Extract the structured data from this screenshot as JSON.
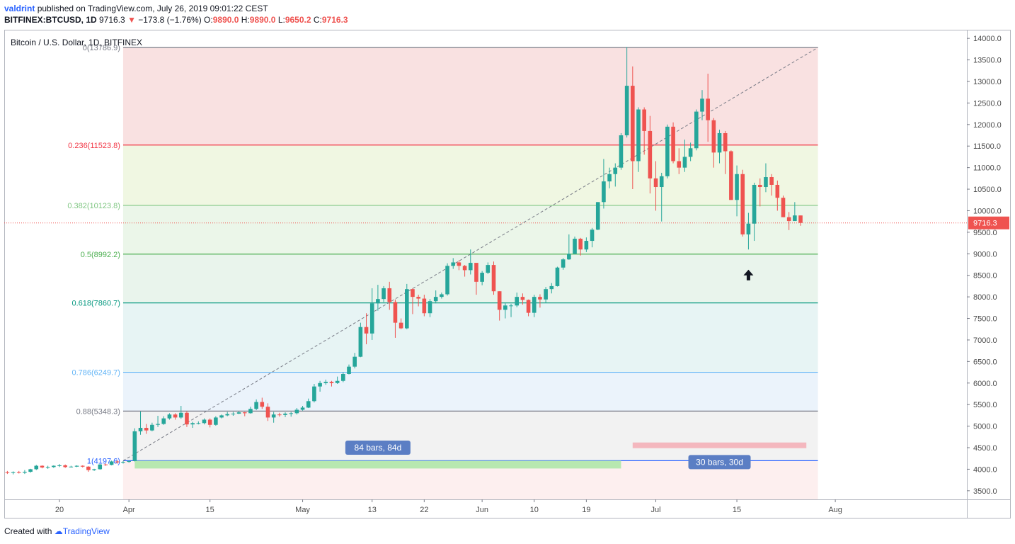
{
  "header": {
    "author": "valdrint",
    "published_text": "published on TradingView.com, July 26, 2019 09:01:22 CEST",
    "symbol": "BITFINEX:BTCUSD, 1D",
    "last": "9716.3",
    "arrow": "▼",
    "change": "−173.8 (−1.76%)",
    "o_label": "O:",
    "o_value": "9890.0",
    "h_label": "H:",
    "h_value": "9890.0",
    "l_label": "L:",
    "l_value": "9650.2",
    "c_label": "C:",
    "c_value": "9716.3"
  },
  "footer": {
    "created_with": "Created with",
    "brand": "TradingView"
  },
  "chart_data": {
    "type": "candlestick",
    "title": "Bitcoin / U.S. Dollar, 1D, BITFINEX",
    "ylim": [
      3300,
      14200
    ],
    "y_ticks": [
      3500,
      4000,
      4500,
      5000,
      5500,
      6000,
      6500,
      7000,
      7500,
      8000,
      8500,
      9000,
      9500,
      10000,
      10500,
      11000,
      11500,
      12000,
      12500,
      13000,
      13500,
      14000
    ],
    "x_ticks": [
      {
        "label": "20",
        "date": "2019-03-20"
      },
      {
        "label": "Apr",
        "date": "2019-04-01"
      },
      {
        "label": "15",
        "date": "2019-04-15"
      },
      {
        "label": "May",
        "date": "2019-05-01"
      },
      {
        "label": "13",
        "date": "2019-05-13"
      },
      {
        "label": "22",
        "date": "2019-05-22"
      },
      {
        "label": "Jun",
        "date": "2019-06-01"
      },
      {
        "label": "10",
        "date": "2019-06-10"
      },
      {
        "label": "19",
        "date": "2019-06-19"
      },
      {
        "label": "Jul",
        "date": "2019-07-01"
      },
      {
        "label": "15",
        "date": "2019-07-15"
      },
      {
        "label": "Aug",
        "date": "2019-08-01"
      }
    ],
    "current_price": "9716.3",
    "fib_levels": [
      {
        "ratio": "0",
        "price": "13786.9",
        "value": 13786.9,
        "color": "#787b86"
      },
      {
        "ratio": "0.236",
        "price": "11523.8",
        "value": 11523.8,
        "color": "#f23645"
      },
      {
        "ratio": "0.382",
        "price": "10123.8",
        "value": 10123.8,
        "color": "#81c784"
      },
      {
        "ratio": "0.5",
        "price": "8992.2",
        "value": 8992.2,
        "color": "#4caf50"
      },
      {
        "ratio": "0.618",
        "price": "7860.7",
        "value": 7860.7,
        "color": "#089981"
      },
      {
        "ratio": "0.786",
        "price": "6249.7",
        "value": 6249.7,
        "color": "#64b5f6"
      },
      {
        "ratio": "0.88",
        "price": "5348.3",
        "value": 5348.3,
        "color": "#787b86"
      },
      {
        "ratio": "1",
        "price": "4197.6",
        "value": 4197.6,
        "color": "#2962ff"
      }
    ],
    "range_labels": [
      "84 bars, 84d",
      "30 bars, 30d"
    ],
    "candles": [
      {
        "date": "2019-03-11",
        "o": 3930,
        "h": 3960,
        "l": 3890,
        "c": 3920
      },
      {
        "date": "2019-03-12",
        "o": 3920,
        "h": 3950,
        "l": 3880,
        "c": 3930
      },
      {
        "date": "2019-03-13",
        "o": 3930,
        "h": 3960,
        "l": 3900,
        "c": 3920
      },
      {
        "date": "2019-03-14",
        "o": 3920,
        "h": 3980,
        "l": 3890,
        "c": 3940
      },
      {
        "date": "2019-03-15",
        "o": 3940,
        "h": 4010,
        "l": 3920,
        "c": 4000
      },
      {
        "date": "2019-03-16",
        "o": 4000,
        "h": 4100,
        "l": 3980,
        "c": 4080
      },
      {
        "date": "2019-03-17",
        "o": 4080,
        "h": 4090,
        "l": 4020,
        "c": 4040
      },
      {
        "date": "2019-03-18",
        "o": 4040,
        "h": 4080,
        "l": 4010,
        "c": 4050
      },
      {
        "date": "2019-03-19",
        "o": 4050,
        "h": 4090,
        "l": 4030,
        "c": 4080
      },
      {
        "date": "2019-03-20",
        "o": 4080,
        "h": 4120,
        "l": 4050,
        "c": 4090
      },
      {
        "date": "2019-03-21",
        "o": 4090,
        "h": 4110,
        "l": 4030,
        "c": 4050
      },
      {
        "date": "2019-03-22",
        "o": 4050,
        "h": 4080,
        "l": 4040,
        "c": 4060
      },
      {
        "date": "2019-03-23",
        "o": 4060,
        "h": 4090,
        "l": 4050,
        "c": 4080
      },
      {
        "date": "2019-03-24",
        "o": 4080,
        "h": 4090,
        "l": 4040,
        "c": 4060
      },
      {
        "date": "2019-03-25",
        "o": 4060,
        "h": 4070,
        "l": 3940,
        "c": 3980
      },
      {
        "date": "2019-03-26",
        "o": 3980,
        "h": 4010,
        "l": 3960,
        "c": 4000
      },
      {
        "date": "2019-03-27",
        "o": 4000,
        "h": 4120,
        "l": 3990,
        "c": 4110
      },
      {
        "date": "2019-03-28",
        "o": 4110,
        "h": 4130,
        "l": 4080,
        "c": 4100
      },
      {
        "date": "2019-03-29",
        "o": 4100,
        "h": 4200,
        "l": 4090,
        "c": 4180
      },
      {
        "date": "2019-03-30",
        "o": 4180,
        "h": 4210,
        "l": 4130,
        "c": 4160
      },
      {
        "date": "2019-03-31",
        "o": 4160,
        "h": 4190,
        "l": 4130,
        "c": 4170
      },
      {
        "date": "2019-04-01",
        "o": 4170,
        "h": 4200,
        "l": 4150,
        "c": 4190
      },
      {
        "date": "2019-04-02",
        "o": 4190,
        "h": 4950,
        "l": 4180,
        "c": 4880
      },
      {
        "date": "2019-04-03",
        "o": 4880,
        "h": 5340,
        "l": 4800,
        "c": 4960
      },
      {
        "date": "2019-04-04",
        "o": 4960,
        "h": 5050,
        "l": 4820,
        "c": 4900
      },
      {
        "date": "2019-04-05",
        "o": 4900,
        "h": 5080,
        "l": 4880,
        "c": 5030
      },
      {
        "date": "2019-04-06",
        "o": 5030,
        "h": 5240,
        "l": 4980,
        "c": 5050
      },
      {
        "date": "2019-04-07",
        "o": 5050,
        "h": 5230,
        "l": 5030,
        "c": 5180
      },
      {
        "date": "2019-04-08",
        "o": 5180,
        "h": 5300,
        "l": 5150,
        "c": 5270
      },
      {
        "date": "2019-04-09",
        "o": 5270,
        "h": 5300,
        "l": 5150,
        "c": 5200
      },
      {
        "date": "2019-04-10",
        "o": 5200,
        "h": 5470,
        "l": 5170,
        "c": 5310
      },
      {
        "date": "2019-04-11",
        "o": 5310,
        "h": 5350,
        "l": 4980,
        "c": 5040
      },
      {
        "date": "2019-04-12",
        "o": 5040,
        "h": 5100,
        "l": 4960,
        "c": 5070
      },
      {
        "date": "2019-04-13",
        "o": 5070,
        "h": 5110,
        "l": 5040,
        "c": 5070
      },
      {
        "date": "2019-04-14",
        "o": 5070,
        "h": 5180,
        "l": 5040,
        "c": 5150
      },
      {
        "date": "2019-04-15",
        "o": 5150,
        "h": 5180,
        "l": 4970,
        "c": 5030
      },
      {
        "date": "2019-04-16",
        "o": 5030,
        "h": 5230,
        "l": 5010,
        "c": 5200
      },
      {
        "date": "2019-04-17",
        "o": 5200,
        "h": 5270,
        "l": 5180,
        "c": 5250
      },
      {
        "date": "2019-04-18",
        "o": 5250,
        "h": 5330,
        "l": 5230,
        "c": 5280
      },
      {
        "date": "2019-04-19",
        "o": 5280,
        "h": 5330,
        "l": 5240,
        "c": 5290
      },
      {
        "date": "2019-04-20",
        "o": 5290,
        "h": 5350,
        "l": 5280,
        "c": 5320
      },
      {
        "date": "2019-04-21",
        "o": 5320,
        "h": 5330,
        "l": 5230,
        "c": 5300
      },
      {
        "date": "2019-04-22",
        "o": 5300,
        "h": 5450,
        "l": 5290,
        "c": 5400
      },
      {
        "date": "2019-04-23",
        "o": 5400,
        "h": 5620,
        "l": 5370,
        "c": 5560
      },
      {
        "date": "2019-04-24",
        "o": 5560,
        "h": 5660,
        "l": 5400,
        "c": 5450
      },
      {
        "date": "2019-04-25",
        "o": 5450,
        "h": 5530,
        "l": 5120,
        "c": 5200
      },
      {
        "date": "2019-04-26",
        "o": 5200,
        "h": 5330,
        "l": 5080,
        "c": 5270
      },
      {
        "date": "2019-04-27",
        "o": 5270,
        "h": 5310,
        "l": 5220,
        "c": 5260
      },
      {
        "date": "2019-04-28",
        "o": 5260,
        "h": 5320,
        "l": 5210,
        "c": 5290
      },
      {
        "date": "2019-04-29",
        "o": 5290,
        "h": 5330,
        "l": 5220,
        "c": 5300
      },
      {
        "date": "2019-04-30",
        "o": 5300,
        "h": 5420,
        "l": 5270,
        "c": 5380
      },
      {
        "date": "2019-05-01",
        "o": 5380,
        "h": 5470,
        "l": 5360,
        "c": 5430
      },
      {
        "date": "2019-05-02",
        "o": 5430,
        "h": 5640,
        "l": 5420,
        "c": 5580
      },
      {
        "date": "2019-05-03",
        "o": 5580,
        "h": 5980,
        "l": 5550,
        "c": 5920
      },
      {
        "date": "2019-05-04",
        "o": 5920,
        "h": 6050,
        "l": 5800,
        "c": 6000
      },
      {
        "date": "2019-05-05",
        "o": 6000,
        "h": 6080,
        "l": 5960,
        "c": 6030
      },
      {
        "date": "2019-05-06",
        "o": 6030,
        "h": 6050,
        "l": 5920,
        "c": 6000
      },
      {
        "date": "2019-05-07",
        "o": 6000,
        "h": 6150,
        "l": 5980,
        "c": 6050
      },
      {
        "date": "2019-05-08",
        "o": 6050,
        "h": 6250,
        "l": 6020,
        "c": 6210
      },
      {
        "date": "2019-05-09",
        "o": 6210,
        "h": 6430,
        "l": 6200,
        "c": 6380
      },
      {
        "date": "2019-05-10",
        "o": 6380,
        "h": 6700,
        "l": 6340,
        "c": 6610
      },
      {
        "date": "2019-05-11",
        "o": 6610,
        "h": 7400,
        "l": 6600,
        "c": 7300
      },
      {
        "date": "2019-05-12",
        "o": 7300,
        "h": 7620,
        "l": 6900,
        "c": 7150
      },
      {
        "date": "2019-05-13",
        "o": 7150,
        "h": 8200,
        "l": 7000,
        "c": 7850
      },
      {
        "date": "2019-05-14",
        "o": 7850,
        "h": 8280,
        "l": 7680,
        "c": 7950
      },
      {
        "date": "2019-05-15",
        "o": 7950,
        "h": 8250,
        "l": 7880,
        "c": 8200
      },
      {
        "date": "2019-05-16",
        "o": 8200,
        "h": 8350,
        "l": 7700,
        "c": 7880
      },
      {
        "date": "2019-05-17",
        "o": 7880,
        "h": 7940,
        "l": 7050,
        "c": 7400
      },
      {
        "date": "2019-05-18",
        "o": 7400,
        "h": 7500,
        "l": 7250,
        "c": 7270
      },
      {
        "date": "2019-05-19",
        "o": 7270,
        "h": 8300,
        "l": 7250,
        "c": 8180
      },
      {
        "date": "2019-05-20",
        "o": 8180,
        "h": 8200,
        "l": 7600,
        "c": 8000
      },
      {
        "date": "2019-05-21",
        "o": 8000,
        "h": 8050,
        "l": 7780,
        "c": 7960
      },
      {
        "date": "2019-05-22",
        "o": 7960,
        "h": 8050,
        "l": 7550,
        "c": 7620
      },
      {
        "date": "2019-05-23",
        "o": 7620,
        "h": 7950,
        "l": 7530,
        "c": 7900
      },
      {
        "date": "2019-05-24",
        "o": 7900,
        "h": 8150,
        "l": 7850,
        "c": 8000
      },
      {
        "date": "2019-05-25",
        "o": 8000,
        "h": 8100,
        "l": 7960,
        "c": 8060
      },
      {
        "date": "2019-05-26",
        "o": 8060,
        "h": 8780,
        "l": 8030,
        "c": 8720
      },
      {
        "date": "2019-05-27",
        "o": 8720,
        "h": 8900,
        "l": 8650,
        "c": 8800
      },
      {
        "date": "2019-05-28",
        "o": 8800,
        "h": 8850,
        "l": 8620,
        "c": 8720
      },
      {
        "date": "2019-05-29",
        "o": 8720,
        "h": 8740,
        "l": 8470,
        "c": 8620
      },
      {
        "date": "2019-05-30",
        "o": 8620,
        "h": 9100,
        "l": 8520,
        "c": 8790
      },
      {
        "date": "2019-05-31",
        "o": 8790,
        "h": 8780,
        "l": 8050,
        "c": 8350
      },
      {
        "date": "2019-06-01",
        "o": 8350,
        "h": 8600,
        "l": 8270,
        "c": 8560
      },
      {
        "date": "2019-06-02",
        "o": 8560,
        "h": 8800,
        "l": 8530,
        "c": 8740
      },
      {
        "date": "2019-06-03",
        "o": 8740,
        "h": 8820,
        "l": 8050,
        "c": 8130
      },
      {
        "date": "2019-06-04",
        "o": 8130,
        "h": 8130,
        "l": 7450,
        "c": 7700
      },
      {
        "date": "2019-06-05",
        "o": 7700,
        "h": 7850,
        "l": 7500,
        "c": 7800
      },
      {
        "date": "2019-06-06",
        "o": 7800,
        "h": 7840,
        "l": 7530,
        "c": 7800
      },
      {
        "date": "2019-06-07",
        "o": 7800,
        "h": 8100,
        "l": 7760,
        "c": 8000
      },
      {
        "date": "2019-06-08",
        "o": 8000,
        "h": 8080,
        "l": 7820,
        "c": 7930
      },
      {
        "date": "2019-06-09",
        "o": 7930,
        "h": 7940,
        "l": 7550,
        "c": 7630
      },
      {
        "date": "2019-06-10",
        "o": 7630,
        "h": 8050,
        "l": 7530,
        "c": 8000
      },
      {
        "date": "2019-06-11",
        "o": 8000,
        "h": 8060,
        "l": 7750,
        "c": 7940
      },
      {
        "date": "2019-06-12",
        "o": 7940,
        "h": 8230,
        "l": 7860,
        "c": 8180
      },
      {
        "date": "2019-06-13",
        "o": 8180,
        "h": 8320,
        "l": 8080,
        "c": 8250
      },
      {
        "date": "2019-06-14",
        "o": 8250,
        "h": 8700,
        "l": 8240,
        "c": 8680
      },
      {
        "date": "2019-06-15",
        "o": 8680,
        "h": 8900,
        "l": 8630,
        "c": 8870
      },
      {
        "date": "2019-06-16",
        "o": 8870,
        "h": 9450,
        "l": 8860,
        "c": 9000
      },
      {
        "date": "2019-06-17",
        "o": 9000,
        "h": 9400,
        "l": 8990,
        "c": 9350
      },
      {
        "date": "2019-06-18",
        "o": 9350,
        "h": 9370,
        "l": 8960,
        "c": 9100
      },
      {
        "date": "2019-06-19",
        "o": 9100,
        "h": 9380,
        "l": 9040,
        "c": 9300
      },
      {
        "date": "2019-06-20",
        "o": 9300,
        "h": 9600,
        "l": 9150,
        "c": 9560
      },
      {
        "date": "2019-06-21",
        "o": 9560,
        "h": 10200,
        "l": 9550,
        "c": 10200
      },
      {
        "date": "2019-06-22",
        "o": 10200,
        "h": 11200,
        "l": 10050,
        "c": 10680
      },
      {
        "date": "2019-06-23",
        "o": 10680,
        "h": 11000,
        "l": 10520,
        "c": 10850
      },
      {
        "date": "2019-06-24",
        "o": 10850,
        "h": 11100,
        "l": 10560,
        "c": 11000
      },
      {
        "date": "2019-06-25",
        "o": 11000,
        "h": 11800,
        "l": 10950,
        "c": 11750
      },
      {
        "date": "2019-06-26",
        "o": 11750,
        "h": 13800,
        "l": 11700,
        "c": 12900
      },
      {
        "date": "2019-06-27",
        "o": 12900,
        "h": 13350,
        "l": 10500,
        "c": 11150
      },
      {
        "date": "2019-06-28",
        "o": 11150,
        "h": 12400,
        "l": 10900,
        "c": 12350
      },
      {
        "date": "2019-06-29",
        "o": 12350,
        "h": 12400,
        "l": 11300,
        "c": 11850
      },
      {
        "date": "2019-06-30",
        "o": 11850,
        "h": 12200,
        "l": 10400,
        "c": 10750
      },
      {
        "date": "2019-07-01",
        "o": 10750,
        "h": 11150,
        "l": 10000,
        "c": 10550
      },
      {
        "date": "2019-07-02",
        "o": 10550,
        "h": 10880,
        "l": 9750,
        "c": 10800
      },
      {
        "date": "2019-07-03",
        "o": 10800,
        "h": 12000,
        "l": 10750,
        "c": 11950
      },
      {
        "date": "2019-07-04",
        "o": 11950,
        "h": 12050,
        "l": 11100,
        "c": 11150
      },
      {
        "date": "2019-07-05",
        "o": 11150,
        "h": 11450,
        "l": 10850,
        "c": 11000
      },
      {
        "date": "2019-07-06",
        "o": 11000,
        "h": 11650,
        "l": 10900,
        "c": 11250
      },
      {
        "date": "2019-07-07",
        "o": 11250,
        "h": 11580,
        "l": 11150,
        "c": 11450
      },
      {
        "date": "2019-07-08",
        "o": 11450,
        "h": 12350,
        "l": 11400,
        "c": 12300
      },
      {
        "date": "2019-07-09",
        "o": 12300,
        "h": 12800,
        "l": 12100,
        "c": 12600
      },
      {
        "date": "2019-07-10",
        "o": 12600,
        "h": 13180,
        "l": 11600,
        "c": 12100
      },
      {
        "date": "2019-07-11",
        "o": 12100,
        "h": 12150,
        "l": 11000,
        "c": 11350
      },
      {
        "date": "2019-07-12",
        "o": 11350,
        "h": 11880,
        "l": 11100,
        "c": 11800
      },
      {
        "date": "2019-07-13",
        "o": 11800,
        "h": 11850,
        "l": 10850,
        "c": 11380
      },
      {
        "date": "2019-07-14",
        "o": 11380,
        "h": 11400,
        "l": 10250,
        "c": 10250
      },
      {
        "date": "2019-07-15",
        "o": 10250,
        "h": 11050,
        "l": 9870,
        "c": 10850
      },
      {
        "date": "2019-07-16",
        "o": 10850,
        "h": 10950,
        "l": 9400,
        "c": 9450
      },
      {
        "date": "2019-07-17",
        "o": 9450,
        "h": 9950,
        "l": 9100,
        "c": 9700
      },
      {
        "date": "2019-07-18",
        "o": 9700,
        "h": 10650,
        "l": 9300,
        "c": 10600
      },
      {
        "date": "2019-07-19",
        "o": 10600,
        "h": 10750,
        "l": 10100,
        "c": 10550
      },
      {
        "date": "2019-07-20",
        "o": 10550,
        "h": 11100,
        "l": 10430,
        "c": 10780
      },
      {
        "date": "2019-07-21",
        "o": 10780,
        "h": 10850,
        "l": 10350,
        "c": 10600
      },
      {
        "date": "2019-07-22",
        "o": 10600,
        "h": 10700,
        "l": 10000,
        "c": 10300
      },
      {
        "date": "2019-07-23",
        "o": 10300,
        "h": 10350,
        "l": 9850,
        "c": 9850
      },
      {
        "date": "2019-07-24",
        "o": 9850,
        "h": 9970,
        "l": 9550,
        "c": 9760
      },
      {
        "date": "2019-07-25",
        "o": 9760,
        "h": 10200,
        "l": 9780,
        "c": 9890
      },
      {
        "date": "2019-07-26",
        "o": 9890,
        "h": 9890,
        "l": 9650,
        "c": 9716.3
      }
    ]
  }
}
